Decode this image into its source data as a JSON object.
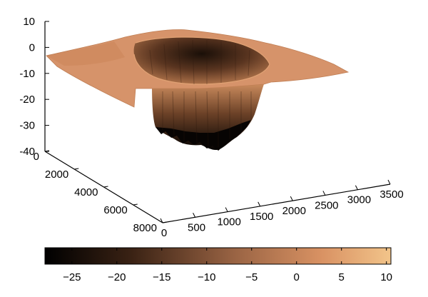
{
  "chart_data": {
    "type": "surface3d",
    "title": "",
    "xlabel": "",
    "ylabel": "",
    "zlabel": "",
    "x_ticks": [
      0,
      500,
      1000,
      1500,
      2000,
      2500,
      3000,
      3500
    ],
    "y_ticks": [
      0,
      2000,
      4000,
      6000,
      8000
    ],
    "z_ticks": [
      10,
      0,
      -10,
      -20,
      -30,
      -40
    ],
    "xlim": [
      0,
      3500
    ],
    "ylim": [
      0,
      8000
    ],
    "zlim": [
      -40,
      10
    ],
    "surface": {
      "description_values": {
        "plane_level": -3,
        "pit_center_x": 1700,
        "pit_center_y": 3000,
        "pit_depth_min": -38
      }
    },
    "colorbar": {
      "ticks": [
        -25,
        -20,
        -15,
        -10,
        -5,
        0,
        5,
        10
      ],
      "range": [
        -28,
        10.5
      ],
      "colormap": "copper",
      "colors": [
        "#000000",
        "#6b4127",
        "#c98a5c",
        "#f2c48a"
      ]
    }
  }
}
